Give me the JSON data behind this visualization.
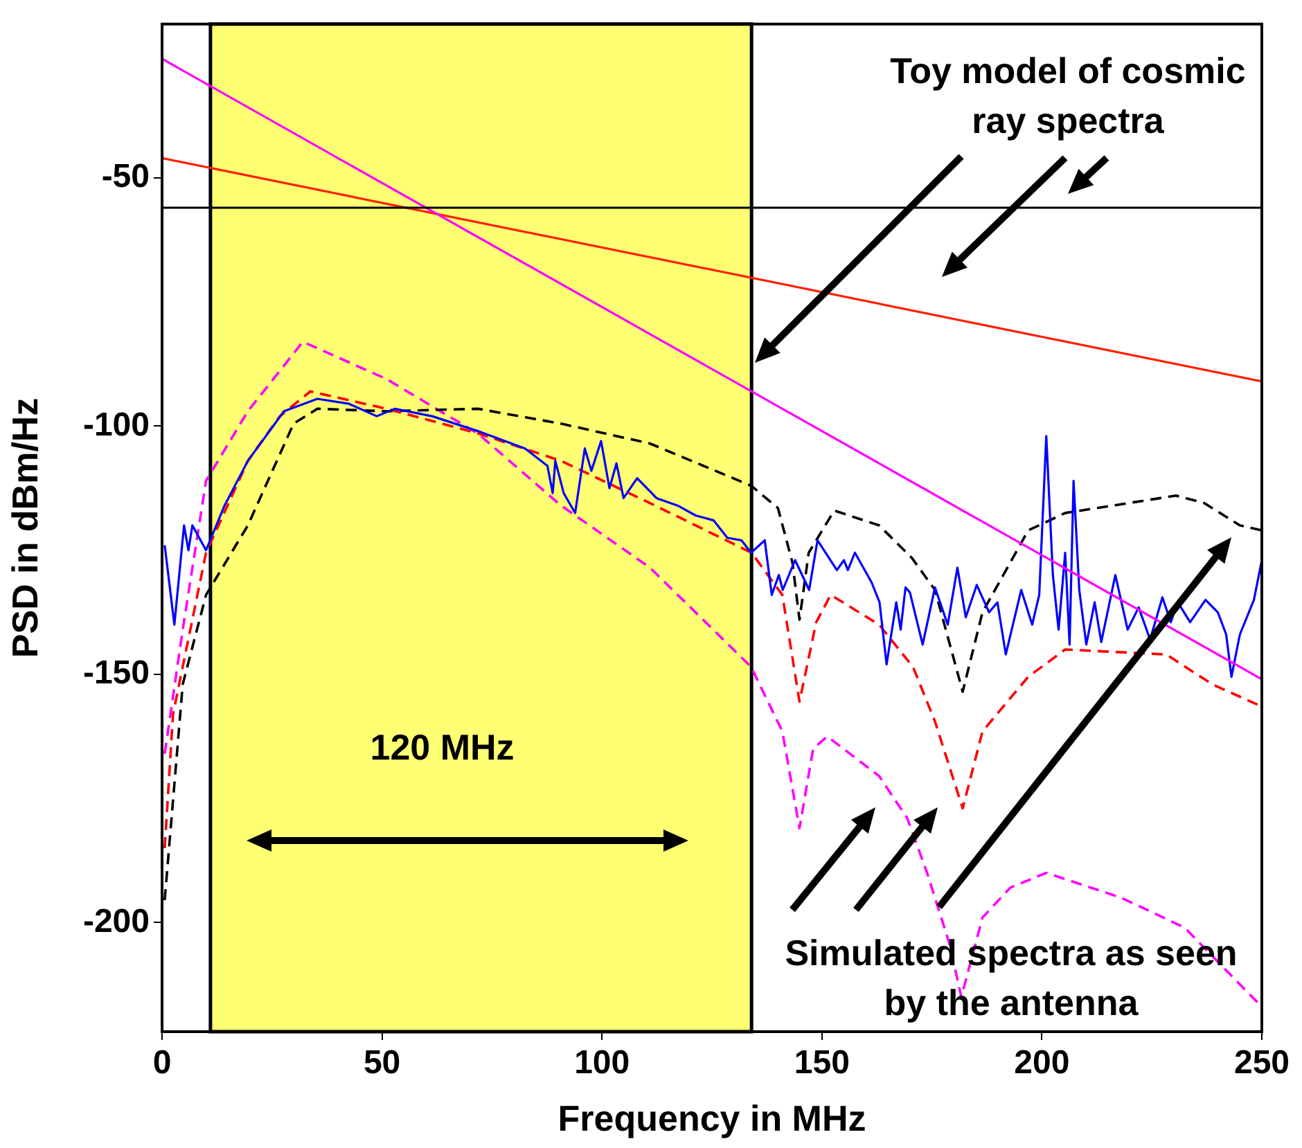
{
  "chart_data": {
    "type": "line",
    "xlabel": "Frequency in MHz",
    "ylabel": "PSD in dBm/Hz",
    "xlim": [
      0,
      250
    ],
    "ylim": [
      -222,
      -19
    ],
    "xticks": [
      0,
      50,
      100,
      150,
      200,
      250
    ],
    "yticks": [
      -200,
      -150,
      -100,
      -50
    ],
    "grid": false,
    "legend": false,
    "marker": "none",
    "series": [
      {
        "color": "#ff00ff",
        "line_style": "solid",
        "x": [
          0,
          250
        ],
        "values": [
          -26,
          -151
        ]
      },
      {
        "color": "#ff2000",
        "line_style": "solid",
        "x": [
          0,
          250
        ],
        "values": [
          -46,
          -91
        ]
      },
      {
        "color": "#0000ff",
        "line_style": "solid",
        "x": [
          0.6,
          2.8,
          5,
          6,
          6.9,
          10,
          14.2,
          19.5,
          27.7,
          35.3,
          42.5,
          48.8,
          52.9,
          61.4,
          71.8,
          82.5,
          87.6,
          88.8,
          89.4,
          91.3,
          93.9,
          96.1,
          97.6,
          99.8,
          101.7,
          103.3,
          104.9,
          108,
          112.4,
          117.2,
          121.3,
          125.4,
          128.5,
          131.7,
          133.9,
          137,
          138.6,
          140.2,
          141.1,
          143.9,
          147.1,
          149,
          153.4,
          155,
          155.9,
          157.5,
          161.3,
          163.1,
          164.7,
          166.9,
          167.9,
          169,
          170,
          172.9,
          175.7,
          178.6,
          180.8,
          182.7,
          185.2,
          188,
          189.9,
          191.8,
          195.3,
          197.8,
          199.4,
          201,
          202.5,
          203.8,
          205.3,
          206.3,
          207.2,
          208.5,
          210.1,
          212,
          213.5,
          216.7,
          219.5,
          222,
          224.6,
          227.4,
          229.3,
          230.9,
          233.7,
          237.2,
          240,
          241.9,
          243.1,
          245,
          248.2,
          250
        ],
        "values": [
          -124,
          -140,
          -120,
          -125,
          -120,
          -125,
          -116,
          -107,
          -97,
          -94.5,
          -95.5,
          -98,
          -96.5,
          -98,
          -101,
          -104.5,
          -108,
          -113.5,
          -107,
          -113.5,
          -117.5,
          -104.5,
          -109,
          -103,
          -112.5,
          -107.5,
          -114.5,
          -110.5,
          -114.5,
          -116,
          -118,
          -119,
          -122.5,
          -123,
          -125.5,
          -123,
          -134,
          -130,
          -133,
          -127,
          -133,
          -123,
          -129,
          -127,
          -129,
          -125.5,
          -131.5,
          -135.5,
          -148,
          -135.5,
          -141,
          -132.5,
          -133.5,
          -144,
          -132.5,
          -140,
          -128.5,
          -138.5,
          -132,
          -137.5,
          -135.5,
          -146,
          -133,
          -140,
          -134,
          -102,
          -130,
          -141,
          -125.5,
          -144,
          -111,
          -133,
          -144,
          -135.5,
          -143.5,
          -130,
          -141,
          -136.5,
          -143,
          -134.5,
          -139.5,
          -135.5,
          -139.5,
          -135,
          -137.5,
          -142,
          -150.5,
          -142,
          -135,
          -127
        ]
      },
      {
        "color": "#ff0000",
        "line_style": "dashed",
        "x": [
          0.6,
          2.5,
          10,
          19.5,
          26.8,
          33.7,
          51,
          72,
          90.7,
          110.9,
          134,
          141,
          144.9,
          148.7,
          152,
          163,
          170.7,
          175.7,
          182,
          186.5,
          196.9,
          205.3,
          228.3,
          238.7,
          250
        ],
        "values": [
          -185,
          -158,
          -125.5,
          -107,
          -98,
          -93,
          -96.5,
          -101.5,
          -107,
          -115.5,
          -125.5,
          -134,
          -155.5,
          -139.5,
          -134,
          -140,
          -148.5,
          -159.5,
          -177,
          -161.5,
          -150.5,
          -145,
          -146,
          -152,
          -156.5
        ]
      },
      {
        "color": "#000000",
        "line_style": "dashed",
        "x": [
          0.6,
          4.7,
          10,
          19.5,
          29.9,
          35.3,
          51,
          71.8,
          90.7,
          110.9,
          133.9,
          140,
          143.3,
          144.9,
          147,
          152.8,
          163,
          170.4,
          175.7,
          182,
          186.5,
          196.9,
          205.3,
          230.5,
          236.9,
          245,
          250
        ],
        "values": [
          -195.5,
          -152,
          -134,
          -120,
          -99.5,
          -96.5,
          -97,
          -96.5,
          -99.5,
          -103.5,
          -112,
          -116.5,
          -127.5,
          -139,
          -125.5,
          -117,
          -120,
          -126.5,
          -133,
          -153.5,
          -137.5,
          -121,
          -117.5,
          -114,
          -115.5,
          -120,
          -121
        ]
      },
      {
        "color": "#ff00ff",
        "line_style": "dashed",
        "x": [
          0.6,
          4.7,
          10,
          19.5,
          32,
          51,
          71.8,
          90.7,
          110.9,
          133.9,
          141,
          144.9,
          148,
          151.2,
          163,
          169.4,
          173.9,
          178.9,
          181.7,
          186.5,
          192.8,
          201,
          218,
          232.4,
          250
        ],
        "values": [
          -166,
          -141,
          -111,
          -97,
          -83,
          -90.5,
          -101.5,
          -116,
          -128.5,
          -148.5,
          -161.5,
          -181,
          -165,
          -162.5,
          -170.5,
          -179,
          -190,
          -204,
          -215,
          -199,
          -193,
          -190,
          -195,
          -201,
          -217
        ]
      }
    ],
    "bands": [
      {
        "axis": "x",
        "from": 11,
        "to": 134,
        "label": "120 MHz",
        "color": "#ffff00"
      }
    ],
    "ref_lines": [
      {
        "axis": "y",
        "value": -56,
        "color": "#000000"
      }
    ],
    "annotations": [
      "Toy model of cosmic ray spectra",
      "Simulated spectra as seen by the antenna"
    ]
  }
}
